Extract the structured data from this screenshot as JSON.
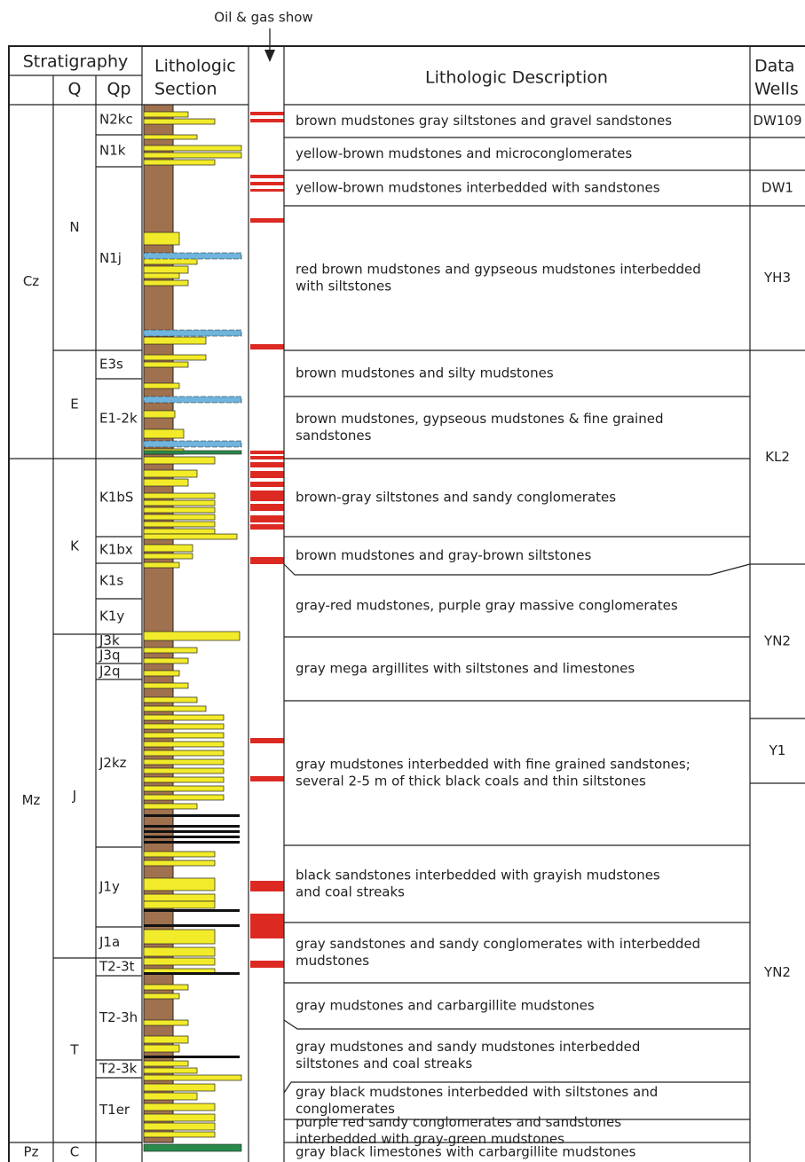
{
  "header": {
    "annotation": "Oil & gas show",
    "stratigraphy": "Stratigraphy",
    "q": "Q",
    "qp": "Qp",
    "lithologic_section": [
      "Lithologic",
      "Section"
    ],
    "description": "Lithologic Description",
    "data_wells": [
      "Data",
      "Wells"
    ]
  },
  "eras": [
    "Cz",
    "Mz",
    "Pz"
  ],
  "periods": [
    "N",
    "E",
    "K",
    "J",
    "T",
    "C"
  ],
  "formations": [
    "N2kc",
    "N1k",
    "N1j",
    "E3s",
    "E1-2k",
    "K1bS",
    "K1bx",
    "K1s",
    "K1y",
    "J3k",
    "J3q",
    "J2q",
    "J2kz",
    "J1y",
    "J1a",
    "T2-3t",
    "T2-3h",
    "T2-3k",
    "T1er"
  ],
  "descriptions": [
    [
      "brown mudstones gray siltstones and gravel sandstones"
    ],
    [
      "yellow-brown mudstones and microconglomerates"
    ],
    [
      "yellow-brown mudstones interbedded with sandstones"
    ],
    [
      "red brown mudstones and gypseous mudstones interbedded",
      "with siltstones"
    ],
    [
      "brown mudstones and silty mudstones"
    ],
    [
      "brown mudstones, gypseous mudstones & fine grained",
      "sandstones"
    ],
    [
      "brown-gray siltstones and sandy conglomerates"
    ],
    [
      "brown mudstones and gray-brown siltstones"
    ],
    [
      "gray-red mudstones, purple gray massive conglomerates"
    ],
    [
      "gray mega argillites with siltstones and limestones"
    ],
    [
      "gray mudstones interbedded with fine grained sandstones;",
      "several 2-5 m of thick black coals and thin siltstones"
    ],
    [
      "black sandstones interbedded with grayish mudstones",
      "and coal streaks"
    ],
    [
      "gray sandstones and sandy conglomerates with interbedded",
      "mudstones"
    ],
    [
      "gray mudstones and carbargillite mudstones"
    ],
    [
      "gray mudstones and sandy mudstones interbedded",
      "siltstones and coal streaks"
    ],
    [
      "gray black mudstones interbedded with siltstones and",
      "conglomerates"
    ],
    [
      "purple red sandy conglomerates and sandstones",
      "interbedded with gray-green mudstones"
    ],
    [
      "gray black limestones with carbargillite mudstones"
    ]
  ],
  "wells": [
    "DW109",
    "DW1",
    "YH3",
    "KL2",
    "YN2",
    "Y1",
    "YN2"
  ]
}
